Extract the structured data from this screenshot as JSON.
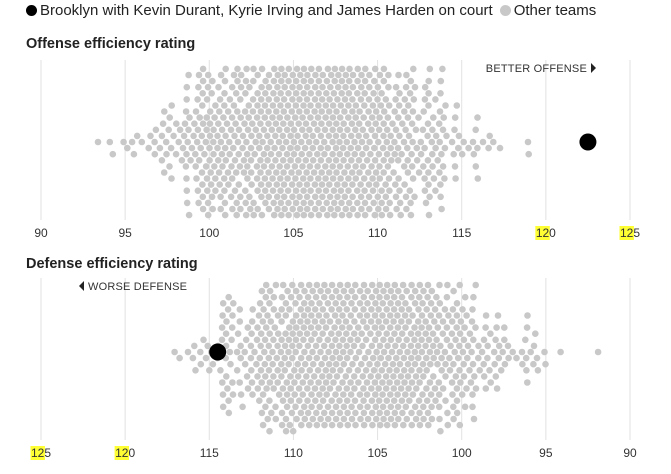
{
  "legend": {
    "highlight_label": "Brooklyn with Kevin Durant, Kyrie Irving and James Harden on court",
    "other_label": "Other teams"
  },
  "colors": {
    "highlight": "#000000",
    "others": "#c8c8c8",
    "grid": "#e2e2e2"
  },
  "chart_data": [
    {
      "type": "scatter",
      "title": "Offense efficiency rating",
      "annotation": "BETTER OFFENSE",
      "annotation_arrow": "right",
      "x_ticks": [
        90,
        95,
        100,
        105,
        110,
        115,
        120,
        125
      ],
      "xlim": [
        90,
        125
      ],
      "reversed": false,
      "highlight": {
        "x": 122.5
      },
      "others": {
        "count": 1200,
        "center": 106,
        "spread": 4.2,
        "min": 92.2,
        "max": 119
      }
    },
    {
      "type": "scatter",
      "title": "Defense efficiency rating",
      "annotation": "WORSE DEFENSE",
      "annotation_arrow": "left",
      "x_ticks": [
        125,
        120,
        115,
        110,
        105,
        100,
        95,
        90
      ],
      "xlim": [
        125,
        90
      ],
      "reversed": true,
      "highlight": {
        "x": 114.5
      },
      "others": {
        "count": 1200,
        "center": 106,
        "spread": 4.2,
        "min": 90.5,
        "max": 117.5
      }
    }
  ]
}
